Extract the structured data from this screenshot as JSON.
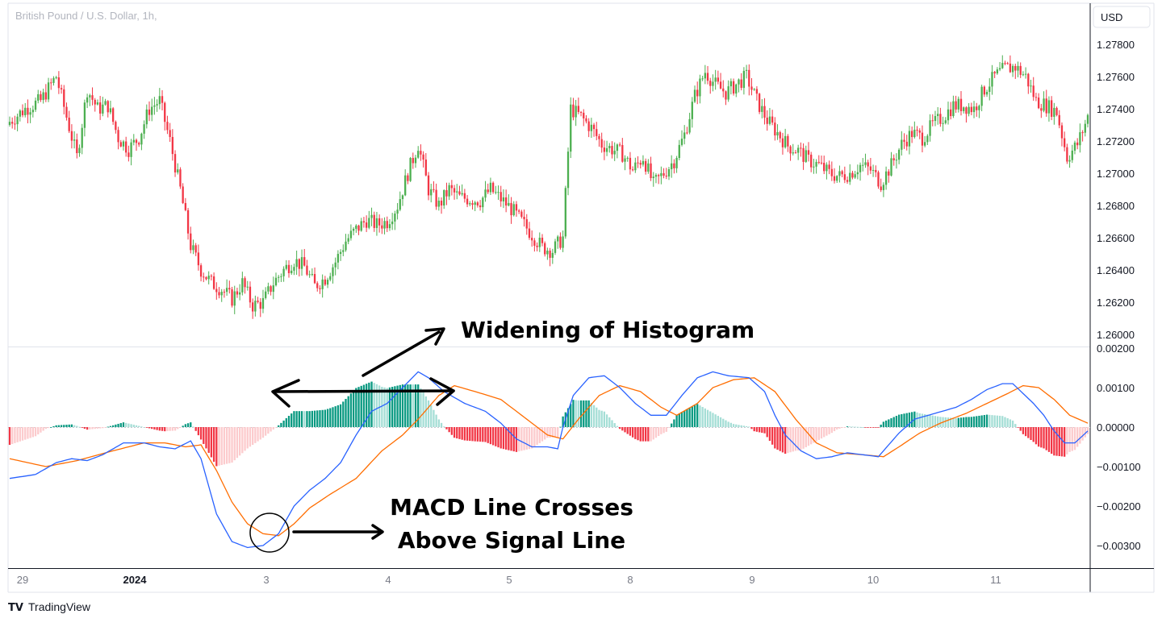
{
  "header": {
    "symbol_title": "British Pound / U.S. Dollar, 1h,",
    "currency_button": "USD"
  },
  "footer": {
    "brand": "TradingView",
    "logo_text": "TV"
  },
  "colors": {
    "up": "#26a69a",
    "up_candle": "#4caf50",
    "down": "#f23645",
    "hist_up_strong": "#089981",
    "hist_up_weak": "#a5ded6",
    "hist_down_strong": "#f23645",
    "hist_down_weak": "#fccbcd",
    "macd_line": "#2962ff",
    "signal_line": "#ff6d00"
  },
  "annotations": {
    "widening": "Widening of Histogram",
    "crosses_line1": "MACD Line Crosses",
    "crosses_line2": "Above Signal Line"
  },
  "chart_data": [
    {
      "type": "candlestick",
      "title": "British Pound / U.S. Dollar, 1h,",
      "ylim": [
        1.2595,
        1.2785
      ],
      "yticks": [
        "1.27800",
        "1.27600",
        "1.27400",
        "1.27200",
        "1.27000",
        "1.26800",
        "1.26600",
        "1.26400",
        "1.26200",
        "1.26000"
      ],
      "xticks": [
        "29",
        "2024",
        "3",
        "4",
        "5",
        "8",
        "9",
        "10",
        "11"
      ],
      "anchors": [
        [
          0,
          1.2732
        ],
        [
          6,
          1.274
        ],
        [
          12,
          1.2745
        ],
        [
          18,
          1.276
        ],
        [
          22,
          1.2735
        ],
        [
          26,
          1.271
        ],
        [
          30,
          1.2752
        ],
        [
          34,
          1.274
        ],
        [
          38,
          1.2742
        ],
        [
          42,
          1.2722
        ],
        [
          46,
          1.2715
        ],
        [
          50,
          1.2722
        ],
        [
          54,
          1.274
        ],
        [
          58,
          1.2745
        ],
        [
          62,
          1.272
        ],
        [
          66,
          1.269
        ],
        [
          70,
          1.2655
        ],
        [
          74,
          1.264
        ],
        [
          78,
          1.2632
        ],
        [
          82,
          1.2628
        ],
        [
          86,
          1.2622
        ],
        [
          90,
          1.2632
        ],
        [
          94,
          1.2618
        ],
        [
          98,
          1.262
        ],
        [
          102,
          1.2632
        ],
        [
          106,
          1.264
        ],
        [
          110,
          1.2646
        ],
        [
          114,
          1.2642
        ],
        [
          118,
          1.263
        ],
        [
          122,
          1.2635
        ],
        [
          126,
          1.2645
        ],
        [
          130,
          1.2658
        ],
        [
          134,
          1.2665
        ],
        [
          138,
          1.2671
        ],
        [
          142,
          1.2668
        ],
        [
          146,
          1.267
        ],
        [
          150,
          1.268
        ],
        [
          154,
          1.27
        ],
        [
          158,
          1.2718
        ],
        [
          162,
          1.269
        ],
        [
          166,
          1.268
        ],
        [
          170,
          1.269
        ],
        [
          174,
          1.2685
        ],
        [
          178,
          1.2684
        ],
        [
          182,
          1.2683
        ],
        [
          186,
          1.269
        ],
        [
          190,
          1.2684
        ],
        [
          194,
          1.2678
        ],
        [
          198,
          1.267
        ],
        [
          202,
          1.2662
        ],
        [
          206,
          1.2654
        ],
        [
          210,
          1.2652
        ],
        [
          214,
          1.266
        ],
        [
          217,
          1.274
        ],
        [
          221,
          1.2735
        ],
        [
          225,
          1.2728
        ],
        [
          229,
          1.2718
        ],
        [
          233,
          1.2715
        ],
        [
          237,
          1.2712
        ],
        [
          241,
          1.2702
        ],
        [
          245,
          1.271
        ],
        [
          249,
          1.2693
        ],
        [
          253,
          1.27
        ],
        [
          257,
          1.2708
        ],
        [
          261,
          1.2724
        ],
        [
          265,
          1.2748
        ],
        [
          269,
          1.2763
        ],
        [
          273,
          1.2755
        ],
        [
          277,
          1.275
        ],
        [
          281,
          1.2755
        ],
        [
          285,
          1.276
        ],
        [
          289,
          1.2745
        ],
        [
          293,
          1.2733
        ],
        [
          297,
          1.2725
        ],
        [
          301,
          1.2717
        ],
        [
          305,
          1.2714
        ],
        [
          309,
          1.2708
        ],
        [
          313,
          1.2705
        ],
        [
          317,
          1.27
        ],
        [
          321,
          1.2698
        ],
        [
          325,
          1.27
        ],
        [
          329,
          1.2705
        ],
        [
          333,
          1.2702
        ],
        [
          337,
          1.2694
        ],
        [
          341,
          1.2705
        ],
        [
          345,
          1.2718
        ],
        [
          349,
          1.2725
        ],
        [
          353,
          1.2722
        ],
        [
          357,
          1.273
        ],
        [
          361,
          1.2735
        ],
        [
          365,
          1.2742
        ],
        [
          369,
          1.2742
        ],
        [
          373,
          1.274
        ],
        [
          377,
          1.2752
        ],
        [
          381,
          1.276
        ],
        [
          385,
          1.2765
        ],
        [
          389,
          1.2766
        ],
        [
          393,
          1.276
        ],
        [
          397,
          1.2745
        ],
        [
          401,
          1.2742
        ],
        [
          405,
          1.2738
        ],
        [
          409,
          1.271
        ],
        [
          413,
          1.2718
        ],
        [
          417,
          1.2735
        ]
      ]
    },
    {
      "type": "macd",
      "ylim": [
        -0.0035,
        0.002
      ],
      "yticks": [
        "0.00200",
        "0.00100",
        "0.00000",
        "−0.00100",
        "−0.00200",
        "−0.00300"
      ],
      "macd_anchors": [
        [
          0,
          -0.0013
        ],
        [
          10,
          -0.0012
        ],
        [
          18,
          -0.0009
        ],
        [
          24,
          -0.0008
        ],
        [
          30,
          -0.00085
        ],
        [
          36,
          -0.0007
        ],
        [
          44,
          -0.0004
        ],
        [
          52,
          -0.0004
        ],
        [
          58,
          -0.0005
        ],
        [
          64,
          -0.00055
        ],
        [
          70,
          -0.00035
        ],
        [
          74,
          -0.0008
        ],
        [
          80,
          -0.0022
        ],
        [
          86,
          -0.0029
        ],
        [
          92,
          -0.00305
        ],
        [
          98,
          -0.003
        ],
        [
          104,
          -0.0027
        ],
        [
          110,
          -0.002
        ],
        [
          116,
          -0.0016
        ],
        [
          122,
          -0.0013
        ],
        [
          128,
          -0.0009
        ],
        [
          134,
          -0.0002
        ],
        [
          140,
          0.0004
        ],
        [
          146,
          0.0006
        ],
        [
          152,
          0.001
        ],
        [
          158,
          0.0014
        ],
        [
          162,
          0.00125
        ],
        [
          168,
          0.0009
        ],
        [
          176,
          0.0006
        ],
        [
          184,
          0.0004
        ],
        [
          190,
          0.0001
        ],
        [
          196,
          -0.0003
        ],
        [
          202,
          -0.0005
        ],
        [
          208,
          -0.0005
        ],
        [
          212,
          -0.00055
        ],
        [
          214,
          0.0
        ],
        [
          218,
          0.0008
        ],
        [
          224,
          0.00125
        ],
        [
          230,
          0.0013
        ],
        [
          236,
          0.001
        ],
        [
          242,
          0.0006
        ],
        [
          248,
          0.0003
        ],
        [
          254,
          0.0003
        ],
        [
          260,
          0.0008
        ],
        [
          266,
          0.00125
        ],
        [
          272,
          0.0014
        ],
        [
          278,
          0.0013
        ],
        [
          286,
          0.00125
        ],
        [
          292,
          0.0009
        ],
        [
          296,
          0.0003
        ],
        [
          300,
          -0.0002
        ],
        [
          306,
          -0.0006
        ],
        [
          312,
          -0.0008
        ],
        [
          318,
          -0.00075
        ],
        [
          324,
          -0.00065
        ],
        [
          330,
          -0.0007
        ],
        [
          336,
          -0.00075
        ],
        [
          340,
          -0.00045
        ],
        [
          344,
          -0.00015
        ],
        [
          350,
          0.0002
        ],
        [
          358,
          0.00035
        ],
        [
          366,
          0.0005
        ],
        [
          372,
          0.0007
        ],
        [
          378,
          0.00095
        ],
        [
          384,
          0.0011
        ],
        [
          388,
          0.0011
        ],
        [
          392,
          0.00085
        ],
        [
          396,
          0.0006
        ],
        [
          400,
          0.0003
        ],
        [
          404,
          -0.0001
        ],
        [
          408,
          -0.0004
        ],
        [
          412,
          -0.0004
        ],
        [
          417,
          -0.0001
        ]
      ],
      "signal_anchors": [
        [
          0,
          -0.0008
        ],
        [
          14,
          -0.001
        ],
        [
          26,
          -0.00085
        ],
        [
          40,
          -0.0006
        ],
        [
          52,
          -0.0004
        ],
        [
          60,
          -0.0004
        ],
        [
          68,
          -0.0005
        ],
        [
          74,
          -0.00045
        ],
        [
          80,
          -0.0011
        ],
        [
          86,
          -0.0019
        ],
        [
          92,
          -0.00245
        ],
        [
          98,
          -0.0027
        ],
        [
          104,
          -0.00275
        ],
        [
          110,
          -0.00245
        ],
        [
          116,
          -0.00205
        ],
        [
          124,
          -0.0017
        ],
        [
          134,
          -0.0013
        ],
        [
          144,
          -0.0006
        ],
        [
          152,
          -0.0002
        ],
        [
          158,
          0.0002
        ],
        [
          166,
          0.0008
        ],
        [
          172,
          0.00105
        ],
        [
          180,
          0.0009
        ],
        [
          190,
          0.0007
        ],
        [
          200,
          0.0002
        ],
        [
          208,
          -0.0002
        ],
        [
          214,
          -0.0003
        ],
        [
          220,
          0.0002
        ],
        [
          228,
          0.0008
        ],
        [
          236,
          0.00105
        ],
        [
          244,
          0.0009
        ],
        [
          252,
          0.0005
        ],
        [
          258,
          0.0003
        ],
        [
          266,
          0.0006
        ],
        [
          272,
          0.001
        ],
        [
          280,
          0.0012
        ],
        [
          288,
          0.00125
        ],
        [
          296,
          0.0009
        ],
        [
          304,
          0.0002
        ],
        [
          312,
          -0.0004
        ],
        [
          320,
          -0.00065
        ],
        [
          330,
          -0.0007
        ],
        [
          338,
          -0.00075
        ],
        [
          344,
          -0.0005
        ],
        [
          352,
          -0.00015
        ],
        [
          360,
          0.0001
        ],
        [
          370,
          0.00035
        ],
        [
          378,
          0.0006
        ],
        [
          386,
          0.00085
        ],
        [
          392,
          0.00105
        ],
        [
          398,
          0.001
        ],
        [
          404,
          0.0007
        ],
        [
          410,
          0.0003
        ],
        [
          417,
          0.0001
        ]
      ]
    }
  ]
}
